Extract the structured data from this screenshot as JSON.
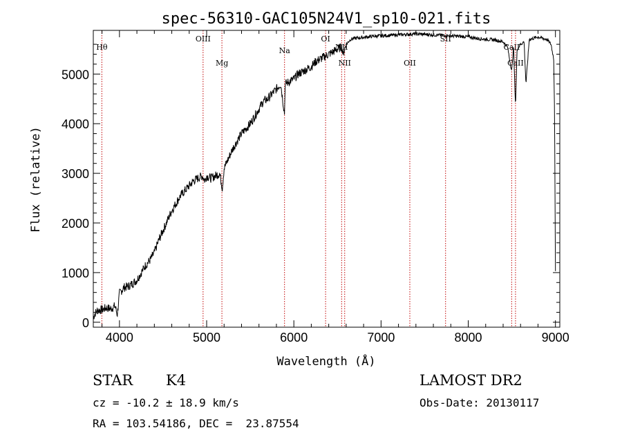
{
  "chart_data": {
    "type": "line",
    "title": "spec-56310-GAC105N24V1_sp10-021.fits",
    "xlabel": "Wavelength (Å)",
    "ylabel": "Flux (relative)",
    "xlim": [
      3700,
      9050
    ],
    "ylim": [
      -100,
      5880
    ],
    "xticks": [
      4000,
      5000,
      6000,
      7000,
      8000,
      9000
    ],
    "yticks": [
      0,
      1000,
      2000,
      3000,
      4000,
      5000
    ],
    "grid": false,
    "series": [
      {
        "x": [
          3700,
          3720,
          3750,
          3800,
          3850,
          3900,
          3950,
          3975,
          3990,
          4000,
          4050,
          4100,
          4150,
          4200,
          4250,
          4300,
          4350,
          4400,
          4450,
          4500,
          4550,
          4600,
          4650,
          4700,
          4750,
          4800,
          4850,
          4900,
          4950,
          4980,
          5000,
          5050,
          5100,
          5150,
          5180,
          5200,
          5250,
          5300,
          5350,
          5400,
          5450,
          5500,
          5550,
          5600,
          5650,
          5700,
          5750,
          5800,
          5850,
          5893,
          5900,
          5950,
          6000,
          6050,
          6100,
          6150,
          6200,
          6250,
          6300,
          6350,
          6400,
          6450,
          6500,
          6550,
          6563,
          6600,
          6650,
          6700,
          6800,
          6900,
          7000,
          7100,
          7200,
          7300,
          7400,
          7500,
          7600,
          7700,
          7800,
          7900,
          8000,
          8100,
          8200,
          8300,
          8400,
          8450,
          8498,
          8520,
          8542,
          8560,
          8600,
          8640,
          8662,
          8700,
          8750,
          8800,
          8850,
          8900,
          8950,
          8980,
          8990,
          9000
        ],
        "y": [
          100,
          180,
          240,
          250,
          290,
          270,
          330,
          150,
          400,
          580,
          700,
          720,
          780,
          850,
          1000,
          1150,
          1250,
          1400,
          1650,
          1850,
          2050,
          2250,
          2400,
          2550,
          2650,
          2750,
          2850,
          2900,
          2950,
          2850,
          2950,
          2900,
          2950,
          3000,
          2700,
          3100,
          3300,
          3500,
          3650,
          3800,
          3900,
          4000,
          4150,
          4300,
          4450,
          4500,
          4600,
          4700,
          4800,
          4200,
          4800,
          4850,
          4900,
          5000,
          5050,
          5100,
          5150,
          5250,
          5300,
          5350,
          5400,
          5450,
          5500,
          5550,
          5400,
          5600,
          5700,
          5720,
          5740,
          5760,
          5770,
          5780,
          5790,
          5800,
          5810,
          5800,
          5790,
          5780,
          5770,
          5760,
          5750,
          5720,
          5700,
          5690,
          5650,
          5550,
          5050,
          5550,
          4350,
          5500,
          5600,
          5650,
          4800,
          5700,
          5720,
          5750,
          5720,
          5700,
          5600,
          5300,
          4200,
          1000
        ]
      }
    ],
    "lines": [
      {
        "label": "Hθ",
        "x": 3798
      },
      {
        "label": "OIII",
        "x": 4959
      },
      {
        "label": "Mg",
        "x": 5175
      },
      {
        "label": "Na",
        "x": 5893
      },
      {
        "label": "OI",
        "x": 6364
      },
      {
        "label": "NII",
        "x": 6548
      },
      {
        "label": "NII",
        "x": 6583
      },
      {
        "label": "OII",
        "x": 7330
      },
      {
        "label": "SII",
        "x": 7740
      },
      {
        "label": "CaII",
        "x": 8498
      },
      {
        "label": "CaII",
        "x": 8542
      }
    ]
  },
  "info": {
    "class_label": "STAR",
    "subclass": "K4",
    "survey": "LAMOST DR2",
    "cz_text": "cz = -10.2 ± 18.9 km/s",
    "obs_date_text": "Obs-Date: 20130117",
    "radec_text": "RA = 103.54186, DEC =  23.87554"
  },
  "colors": {
    "spectrum": "#000000",
    "line_markers": "#c00000",
    "axes": "#000000"
  }
}
